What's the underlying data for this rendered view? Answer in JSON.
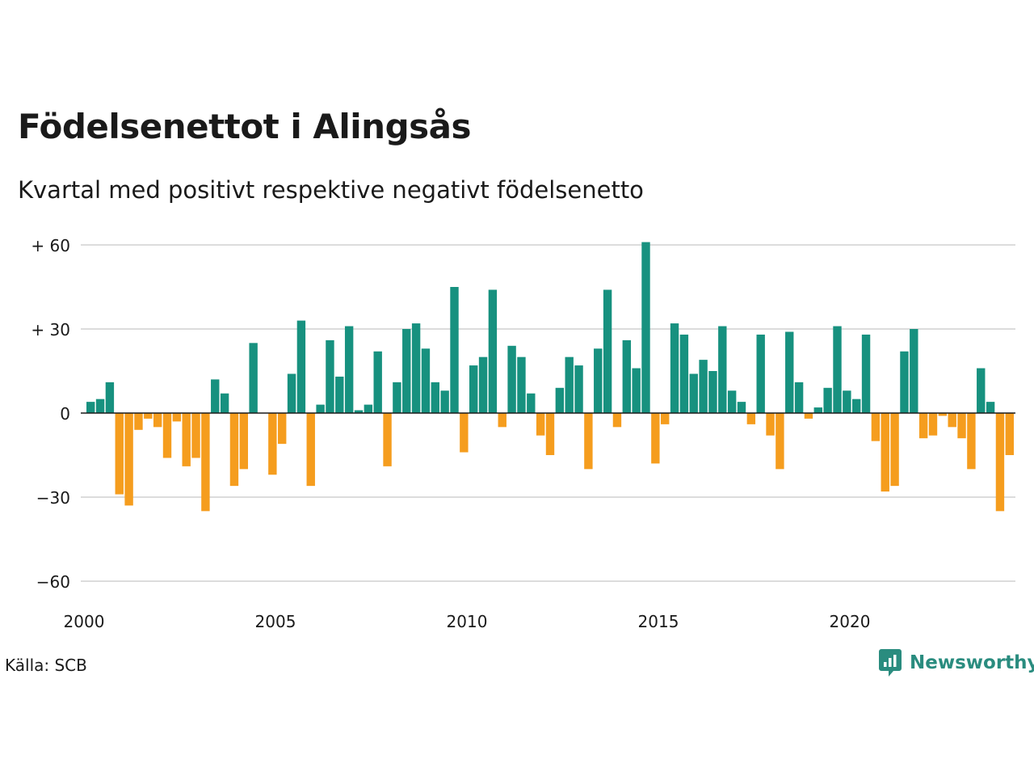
{
  "chart_data": {
    "type": "bar",
    "title": "Födelsenettot i Alingsås",
    "subtitle": "Kvartal med positivt respektive negativt födelsenetto",
    "x_start": 2000,
    "x_tick_years": [
      2000,
      2005,
      2010,
      2015,
      2020
    ],
    "x_tick_labels": [
      "2000",
      "2005",
      "2010",
      "2015",
      "2020"
    ],
    "y_ticks": [
      60,
      30,
      0,
      -30,
      -60
    ],
    "y_tick_labels": [
      "+ 60",
      "+ 30",
      "0",
      "−30",
      "−60"
    ],
    "ylim": [
      -60,
      60
    ],
    "grid": true,
    "colors": {
      "positive": "#17917f",
      "negative": "#f59d1e"
    },
    "values": [
      4,
      5,
      11,
      -29,
      -33,
      -6,
      -2,
      -5,
      -16,
      -3,
      -19,
      -16,
      -35,
      12,
      7,
      -26,
      -20,
      25,
      0,
      -22,
      -11,
      14,
      33,
      -26,
      3,
      26,
      13,
      31,
      1,
      3,
      22,
      -19,
      11,
      30,
      32,
      23,
      11,
      8,
      45,
      -14,
      17,
      20,
      44,
      -5,
      24,
      20,
      7,
      -8,
      -15,
      9,
      20,
      17,
      -20,
      23,
      44,
      -5,
      26,
      16,
      61,
      -18,
      -4,
      32,
      28,
      14,
      19,
      15,
      31,
      8,
      4,
      -4,
      28,
      -8,
      -20,
      29,
      11,
      -2,
      2,
      9,
      31,
      8,
      5,
      28,
      -10,
      -28,
      -26,
      22,
      30,
      -9,
      -8,
      -1,
      -5,
      -9,
      -20,
      16,
      4,
      -35,
      -15
    ]
  },
  "source": "Källa: SCB",
  "brand": {
    "name": "Newsworthy",
    "icon": "newsworthy-logo-icon",
    "color": "#2a8c7f"
  }
}
